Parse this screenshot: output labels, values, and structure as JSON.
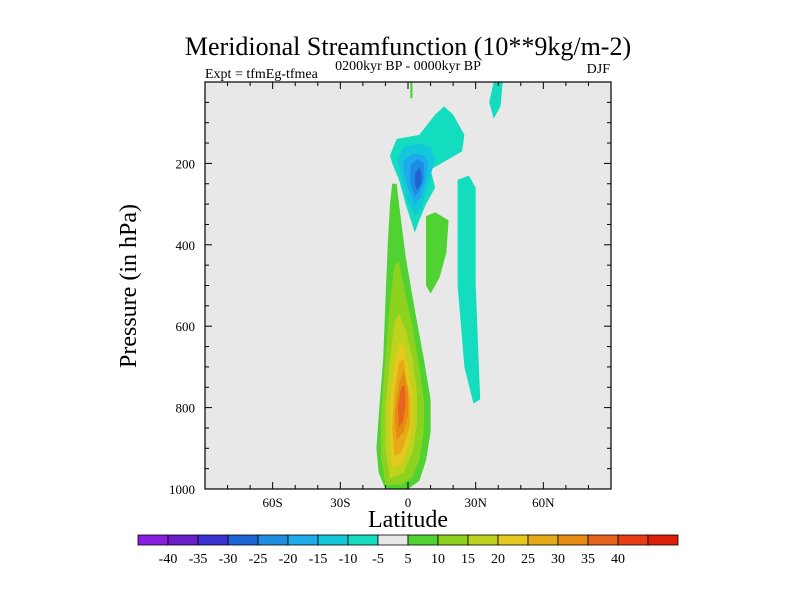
{
  "chart_data": {
    "type": "heatmap",
    "title": "Meridional Streamfunction (10**9kg/m-2)",
    "subtitle": "0200kyr BP - 0000kyr BP",
    "left_label": "Expt = tfmEg-tfmea",
    "right_label": "DJF",
    "xlabel": "Latitude",
    "ylabel": "Pressure (in hPa)",
    "xlim": [
      -90,
      90
    ],
    "ylim": [
      0,
      1000
    ],
    "y_inverted": true,
    "x_ticks": [
      {
        "value": -60,
        "label": "60S"
      },
      {
        "value": -30,
        "label": "30S"
      },
      {
        "value": 0,
        "label": "0"
      },
      {
        "value": 30,
        "label": "30N"
      },
      {
        "value": 60,
        "label": "60N"
      }
    ],
    "y_ticks": [
      {
        "value": 200,
        "label": "200"
      },
      {
        "value": 400,
        "label": "400"
      },
      {
        "value": 600,
        "label": "600"
      },
      {
        "value": 800,
        "label": "800"
      },
      {
        "value": 1000,
        "label": "1000"
      }
    ],
    "background_color": "#e8e8e8",
    "colorbar": {
      "colors": [
        "#8a1ee0",
        "#6a1ec8",
        "#3c32d2",
        "#1e64d2",
        "#1e8ce1",
        "#1eaaeb",
        "#14c8dc",
        "#14dcbe",
        "#e8e8e8",
        "#50d232",
        "#8cd21e",
        "#bed21e",
        "#e6c81e",
        "#e6aa14",
        "#e68c14",
        "#e6641e",
        "#e63c14",
        "#dc1e0a"
      ],
      "labels": [
        "-40",
        "-35",
        "-30",
        "-25",
        "-20",
        "-15",
        "-10",
        "-5",
        "5",
        "10",
        "15",
        "20",
        "25",
        "30",
        "35",
        "40"
      ]
    },
    "regions": [
      {
        "name": "southern-hadley-cell-positive",
        "level": 5,
        "polygon": [
          [
            -10,
            1000
          ],
          [
            -13,
            960
          ],
          [
            -14,
            900
          ],
          [
            -13,
            820
          ],
          [
            -11,
            680
          ],
          [
            -10,
            540
          ],
          [
            -9,
            400
          ],
          [
            -8,
            300
          ],
          [
            -7,
            250
          ],
          [
            -5,
            250
          ],
          [
            -4,
            300
          ],
          [
            -1,
            430
          ],
          [
            3,
            560
          ],
          [
            7,
            680
          ],
          [
            10,
            780
          ],
          [
            10,
            860
          ],
          [
            8,
            930
          ],
          [
            5,
            980
          ],
          [
            0,
            1000
          ]
        ]
      },
      {
        "name": "positive-contour-10",
        "level": 10,
        "polygon": [
          [
            -10,
            990
          ],
          [
            -12,
            920
          ],
          [
            -12,
            820
          ],
          [
            -10,
            680
          ],
          [
            -8,
            540
          ],
          [
            -6,
            450
          ],
          [
            -4,
            440
          ],
          [
            -2,
            500
          ],
          [
            2,
            600
          ],
          [
            5,
            700
          ],
          [
            7,
            780
          ],
          [
            7,
            860
          ],
          [
            5,
            930
          ],
          [
            2,
            970
          ],
          [
            -3,
            990
          ]
        ]
      },
      {
        "name": "positive-contour-15",
        "level": 15,
        "polygon": [
          [
            -8,
            975
          ],
          [
            -10,
            900
          ],
          [
            -10,
            800
          ],
          [
            -8,
            680
          ],
          [
            -6,
            590
          ],
          [
            -4,
            570
          ],
          [
            -1,
            610
          ],
          [
            2,
            680
          ],
          [
            4,
            760
          ],
          [
            4,
            840
          ],
          [
            2,
            910
          ],
          [
            -2,
            960
          ]
        ]
      },
      {
        "name": "positive-contour-20",
        "level": 20,
        "polygon": [
          [
            -7,
            950
          ],
          [
            -8,
            880
          ],
          [
            -8,
            790
          ],
          [
            -6,
            690
          ],
          [
            -4,
            640
          ],
          [
            -2,
            650
          ],
          [
            0,
            700
          ],
          [
            2,
            770
          ],
          [
            2,
            840
          ],
          [
            0,
            900
          ],
          [
            -3,
            940
          ]
        ]
      },
      {
        "name": "positive-contour-25",
        "level": 25,
        "polygon": [
          [
            -6,
            920
          ],
          [
            -7,
            850
          ],
          [
            -6,
            760
          ],
          [
            -4,
            690
          ],
          [
            -2,
            680
          ],
          [
            -1,
            720
          ],
          [
            1,
            780
          ],
          [
            1,
            840
          ],
          [
            -1,
            880
          ],
          [
            -3,
            910
          ]
        ]
      },
      {
        "name": "positive-contour-30",
        "level": 30,
        "polygon": [
          [
            -5,
            880
          ],
          [
            -6,
            820
          ],
          [
            -4,
            740
          ],
          [
            -2,
            710
          ],
          [
            0,
            760
          ],
          [
            0,
            820
          ],
          [
            -2,
            860
          ]
        ]
      },
      {
        "name": "positive-contour-35",
        "level": 35,
        "polygon": [
          [
            -4,
            850
          ],
          [
            -4.5,
            800
          ],
          [
            -3,
            750
          ],
          [
            -1.5,
            745
          ],
          [
            -1,
            790
          ],
          [
            -2,
            830
          ]
        ]
      },
      {
        "name": "upper-negative-cell",
        "level": -5,
        "polygon": [
          [
            -8,
            180
          ],
          [
            -5,
            140
          ],
          [
            5,
            130
          ],
          [
            12,
            80
          ],
          [
            16,
            60
          ],
          [
            20,
            80
          ],
          [
            25,
            130
          ],
          [
            24,
            170
          ],
          [
            18,
            190
          ],
          [
            10,
            215
          ],
          [
            12,
            260
          ],
          [
            8,
            300
          ],
          [
            5,
            340
          ],
          [
            3,
            370
          ],
          [
            -1,
            300
          ],
          [
            -4,
            240
          ],
          [
            -7,
            200
          ]
        ]
      },
      {
        "name": "negative-contour-10",
        "level": -10,
        "polygon": [
          [
            -5,
            190
          ],
          [
            -2,
            160
          ],
          [
            5,
            150
          ],
          [
            10,
            160
          ],
          [
            12,
            190
          ],
          [
            10,
            230
          ],
          [
            8,
            270
          ],
          [
            6,
            310
          ],
          [
            3,
            330
          ],
          [
            -1,
            280
          ],
          [
            -3,
            230
          ]
        ]
      },
      {
        "name": "negative-contour-15",
        "level": -15,
        "polygon": [
          [
            -2,
            195
          ],
          [
            2,
            175
          ],
          [
            7,
            180
          ],
          [
            9,
            200
          ],
          [
            8,
            240
          ],
          [
            6,
            280
          ],
          [
            3,
            300
          ],
          [
            0,
            260
          ],
          [
            -2,
            220
          ]
        ]
      },
      {
        "name": "negative-contour-20",
        "level": -20,
        "polygon": [
          [
            1,
            205
          ],
          [
            4,
            190
          ],
          [
            7,
            200
          ],
          [
            7,
            240
          ],
          [
            5,
            270
          ],
          [
            3,
            280
          ],
          [
            1,
            250
          ]
        ]
      },
      {
        "name": "negative-contour-25",
        "level": -25,
        "polygon": [
          [
            3,
            225
          ],
          [
            5,
            210
          ],
          [
            6,
            225
          ],
          [
            6,
            250
          ],
          [
            4,
            265
          ],
          [
            3,
            250
          ]
        ]
      },
      {
        "name": "positive-band-30n",
        "level": 5,
        "polygon": [
          [
            8,
            330
          ],
          [
            12,
            320
          ],
          [
            18,
            340
          ],
          [
            17,
            420
          ],
          [
            14,
            480
          ],
          [
            10,
            520
          ],
          [
            8,
            500
          ],
          [
            8,
            420
          ]
        ]
      },
      {
        "name": "negative-band-30n",
        "level": -5,
        "polygon": [
          [
            22,
            240
          ],
          [
            27,
            230
          ],
          [
            30,
            260
          ],
          [
            30,
            500
          ],
          [
            32,
            780
          ],
          [
            29,
            790
          ],
          [
            25,
            700
          ],
          [
            22,
            500
          ]
        ]
      },
      {
        "name": "negative-band-top",
        "level": -5,
        "polygon": [
          [
            38,
            0
          ],
          [
            42,
            0
          ],
          [
            41,
            60
          ],
          [
            38,
            90
          ],
          [
            36,
            50
          ]
        ]
      },
      {
        "name": "positive-sliver-top",
        "level": 5,
        "polygon": [
          [
            1,
            0
          ],
          [
            2,
            0
          ],
          [
            2,
            40
          ],
          [
            1,
            40
          ]
        ]
      }
    ]
  }
}
